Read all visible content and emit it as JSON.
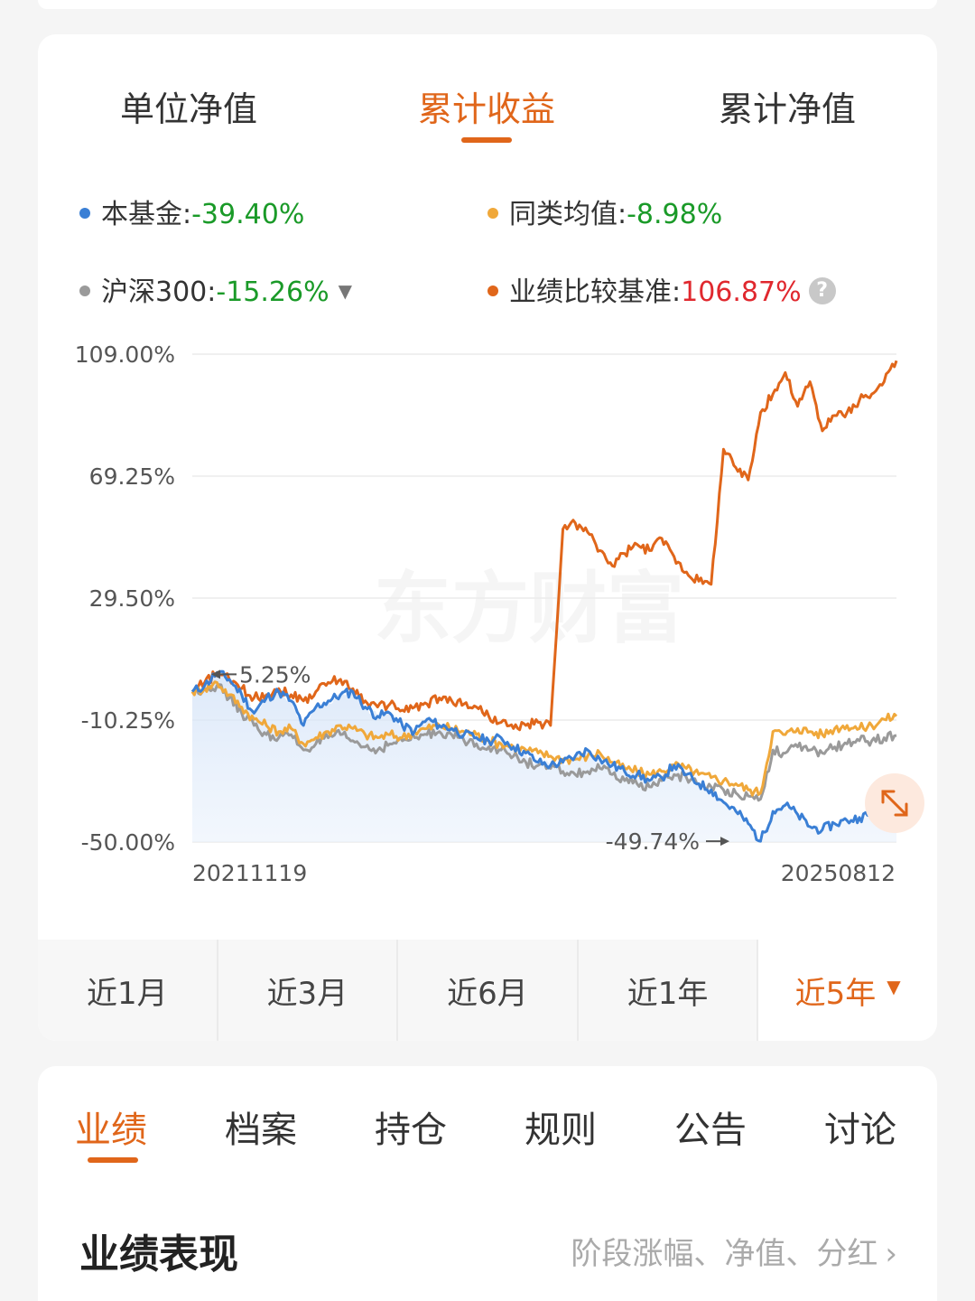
{
  "chart_type_tabs": [
    {
      "label": "单位净值",
      "active": false
    },
    {
      "label": "累计收益",
      "active": true
    },
    {
      "label": "累计净值",
      "active": false
    }
  ],
  "legend": [
    {
      "name": "本基金",
      "value": "-39.40%",
      "color": "#3a7fd5",
      "value_color": "green"
    },
    {
      "name": "同类均值",
      "value": "-8.98%",
      "color": "#f0a83a",
      "value_color": "green"
    },
    {
      "name": "沪深300",
      "value": "-15.26%",
      "color": "#9a9a9a",
      "value_color": "green",
      "has_dropdown": true,
      "dropdown_icon": "caret-down-icon"
    },
    {
      "name": "业绩比较基准",
      "value": "106.87%",
      "color": "#e0661a",
      "value_color": "red",
      "has_help": true,
      "help_icon": "question-circle-icon",
      "help_text": "?"
    }
  ],
  "chart_data": {
    "type": "line",
    "y_ticks": [
      "109.00%",
      "69.25%",
      "29.50%",
      "-10.25%",
      "-50.00%"
    ],
    "y_tick_values": [
      109.0,
      69.25,
      29.5,
      -10.25,
      -50.0
    ],
    "ylim": [
      -50.0,
      109.0
    ],
    "x_start_label": "20211119",
    "x_end_label": "20250812",
    "grid": true,
    "watermark": "东方财富",
    "annotations": [
      {
        "text": "5.25%",
        "value": 5.25,
        "arrow": "left"
      },
      {
        "text": "-49.74%",
        "value": -49.74,
        "arrow": "right"
      }
    ],
    "series": [
      {
        "name": "本基金",
        "color": "#3a7fd5",
        "fill": true,
        "values": [
          -1,
          1,
          5.25,
          3,
          -2,
          -8,
          -3,
          -1,
          -4,
          -12,
          -6,
          -4,
          -2,
          -1,
          -6,
          -9,
          -8,
          -12,
          -14,
          -10,
          -12,
          -13,
          -15,
          -16,
          -17,
          -16,
          -19,
          -21,
          -24,
          -25,
          -24,
          -22,
          -20,
          -23,
          -25,
          -27,
          -28,
          -30,
          -29,
          -25,
          -28,
          -31,
          -33,
          -37,
          -40,
          -44,
          -49.74,
          -40,
          -38,
          -41,
          -45,
          -46,
          -44,
          -43,
          -42,
          -41,
          -42,
          -39.4
        ]
      },
      {
        "name": "同类均值",
        "color": "#f0a83a",
        "fill": false,
        "values": [
          -1,
          0,
          2,
          -2,
          -6,
          -10,
          -12,
          -14,
          -13,
          -18,
          -16,
          -14,
          -12,
          -13,
          -15,
          -16,
          -15,
          -16,
          -14,
          -13,
          -12,
          -13,
          -14,
          -15,
          -17,
          -18,
          -19,
          -20,
          -21,
          -22,
          -23,
          -23,
          -22,
          -21,
          -24,
          -26,
          -27,
          -28,
          -27,
          -25,
          -26,
          -28,
          -29,
          -30,
          -31,
          -33,
          -34,
          -14,
          -15,
          -13,
          -14,
          -15,
          -13,
          -12,
          -13,
          -12,
          -10,
          -8.98
        ]
      },
      {
        "name": "沪深300",
        "color": "#9a9a9a",
        "fill": false,
        "values": [
          -1,
          0,
          1,
          -3,
          -8,
          -12,
          -15,
          -16,
          -15,
          -20,
          -18,
          -16,
          -15,
          -17,
          -19,
          -20,
          -18,
          -17,
          -16,
          -15,
          -14,
          -15,
          -17,
          -18,
          -19,
          -20,
          -22,
          -24,
          -25,
          -26,
          -27,
          -28,
          -27,
          -26,
          -28,
          -30,
          -31,
          -32,
          -30,
          -28,
          -29,
          -31,
          -32,
          -33,
          -34,
          -35,
          -36,
          -20,
          -21,
          -19,
          -20,
          -21,
          -19,
          -18,
          -17,
          -17,
          -16,
          -15.26
        ]
      },
      {
        "name": "业绩比较基准",
        "color": "#e0661a",
        "fill": false,
        "values": [
          -1,
          2,
          5,
          3,
          0,
          -3,
          -2,
          0,
          -2,
          -4,
          -1,
          2,
          3,
          0,
          -4,
          -6,
          -5,
          -7,
          -6,
          -5,
          -3,
          -4,
          -5,
          -6,
          -9,
          -11,
          -13,
          -12,
          -11,
          -12,
          52,
          54,
          51,
          45,
          40,
          44,
          47,
          45,
          49,
          43,
          38,
          35,
          34,
          78,
          72,
          68,
          90,
          96,
          103,
          92,
          100,
          84,
          89,
          90,
          94,
          96,
          100,
          106.87
        ]
      }
    ]
  },
  "period_tabs": [
    {
      "label": "近1月",
      "active": false
    },
    {
      "label": "近3月",
      "active": false
    },
    {
      "label": "近6月",
      "active": false
    },
    {
      "label": "近1年",
      "active": false
    },
    {
      "label": "近5年",
      "active": true,
      "caret_icon": "caret-down-icon"
    }
  ],
  "section_tabs": [
    {
      "label": "业绩",
      "active": true
    },
    {
      "label": "档案",
      "active": false
    },
    {
      "label": "持仓",
      "active": false
    },
    {
      "label": "规则",
      "active": false
    },
    {
      "label": "公告",
      "active": false
    },
    {
      "label": "讨论",
      "active": false
    }
  ],
  "performance": {
    "title": "业绩表现",
    "link_text": "阶段涨幅、净值、分红",
    "link_icon": "chevron-right-icon"
  },
  "expand_icon": "expand-arrows-icon"
}
